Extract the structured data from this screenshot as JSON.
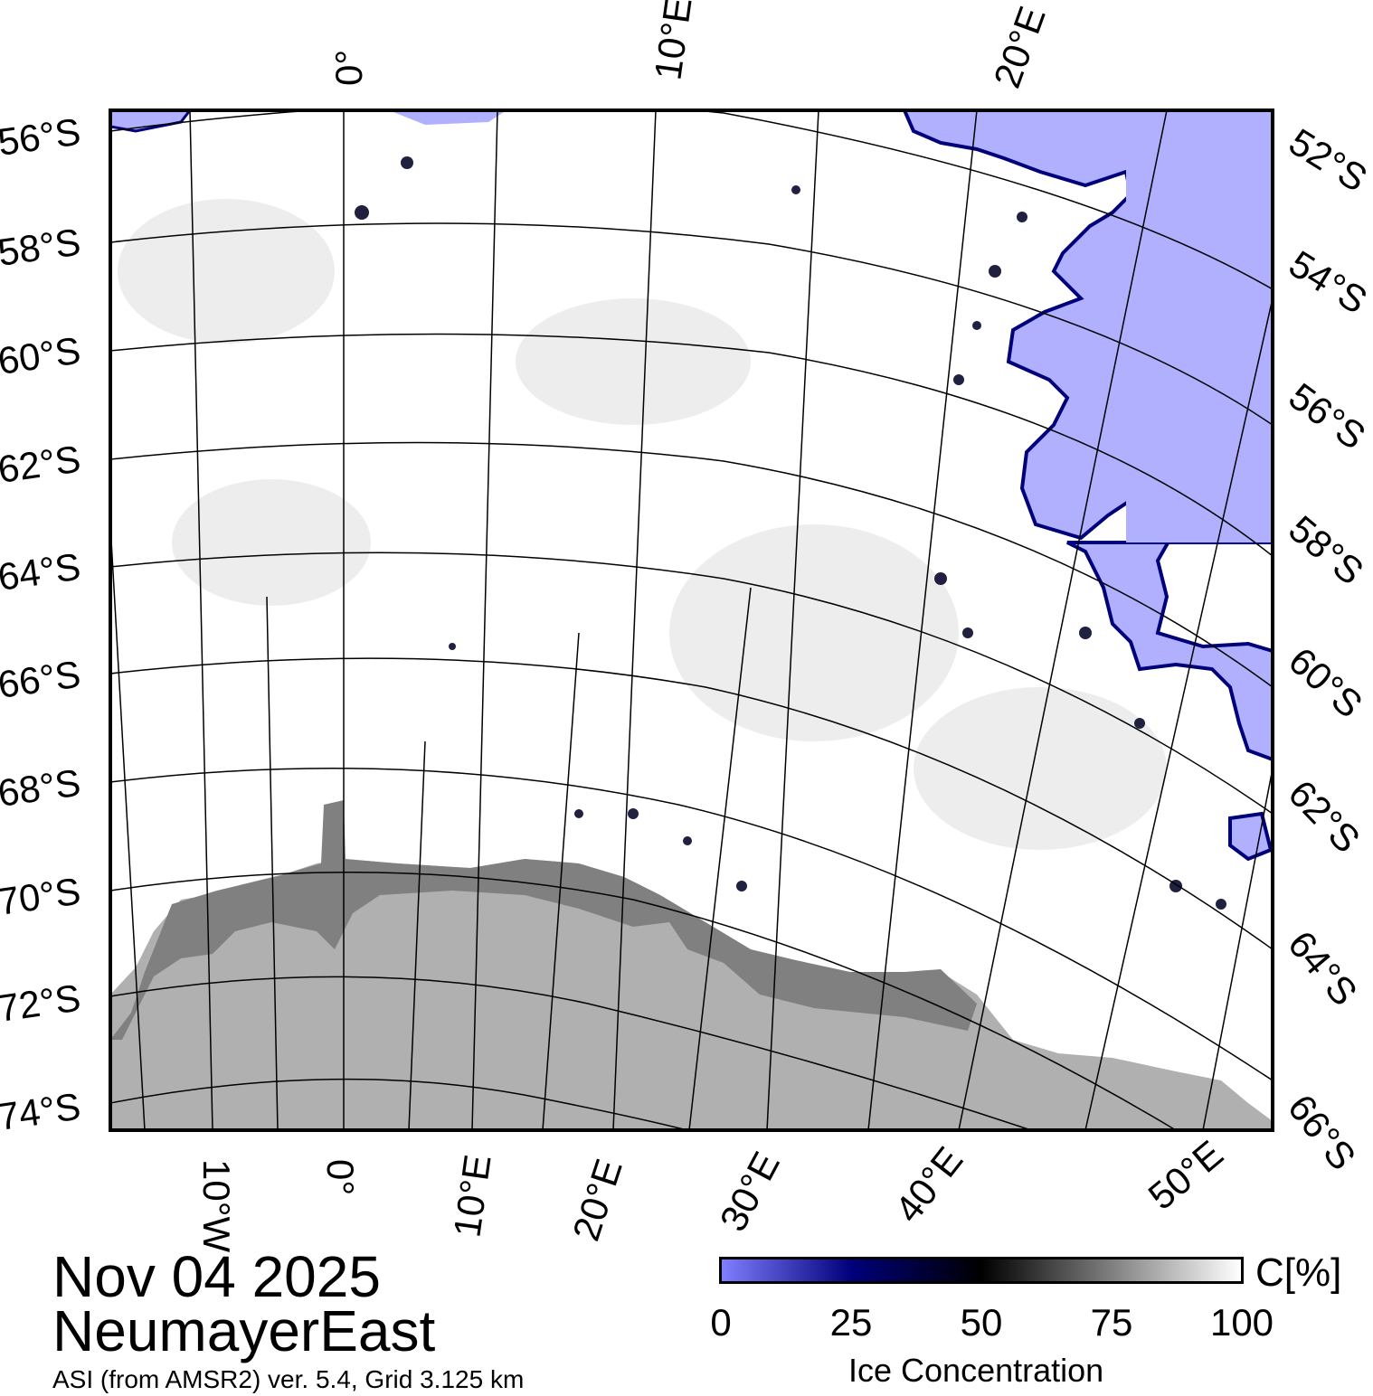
{
  "map": {
    "left_labels": [
      "56°S",
      "58°S",
      "60°S",
      "62°S",
      "64°S",
      "66°S",
      "68°S",
      "70°S",
      "72°S",
      "74°S"
    ],
    "right_labels": [
      "52°S",
      "54°S",
      "56°S",
      "58°S",
      "60°S",
      "62°S",
      "64°S",
      "66°S"
    ],
    "top_labels": [
      "0°",
      "10°E",
      "20°E"
    ],
    "bottom_labels": [
      "10°W",
      "0°",
      "10°E",
      "20°E",
      "30°E",
      "40°E",
      "50°E"
    ],
    "colors": {
      "open_water": "#b0b0ff",
      "land": "#b0b0b0",
      "ice_shelf": "#808080",
      "ice": "#ffffff",
      "frame": "#000000"
    }
  },
  "footer": {
    "date": "Nov 04 2025",
    "region": "NeumayerEast",
    "source": "ASI (from AMSR2) ver. 5.4,  Grid 3.125 km"
  },
  "colorbar": {
    "unit": "C[%]",
    "label": "Ice Concentration",
    "ticks": [
      "0",
      "25",
      "50",
      "75",
      "100"
    ]
  }
}
